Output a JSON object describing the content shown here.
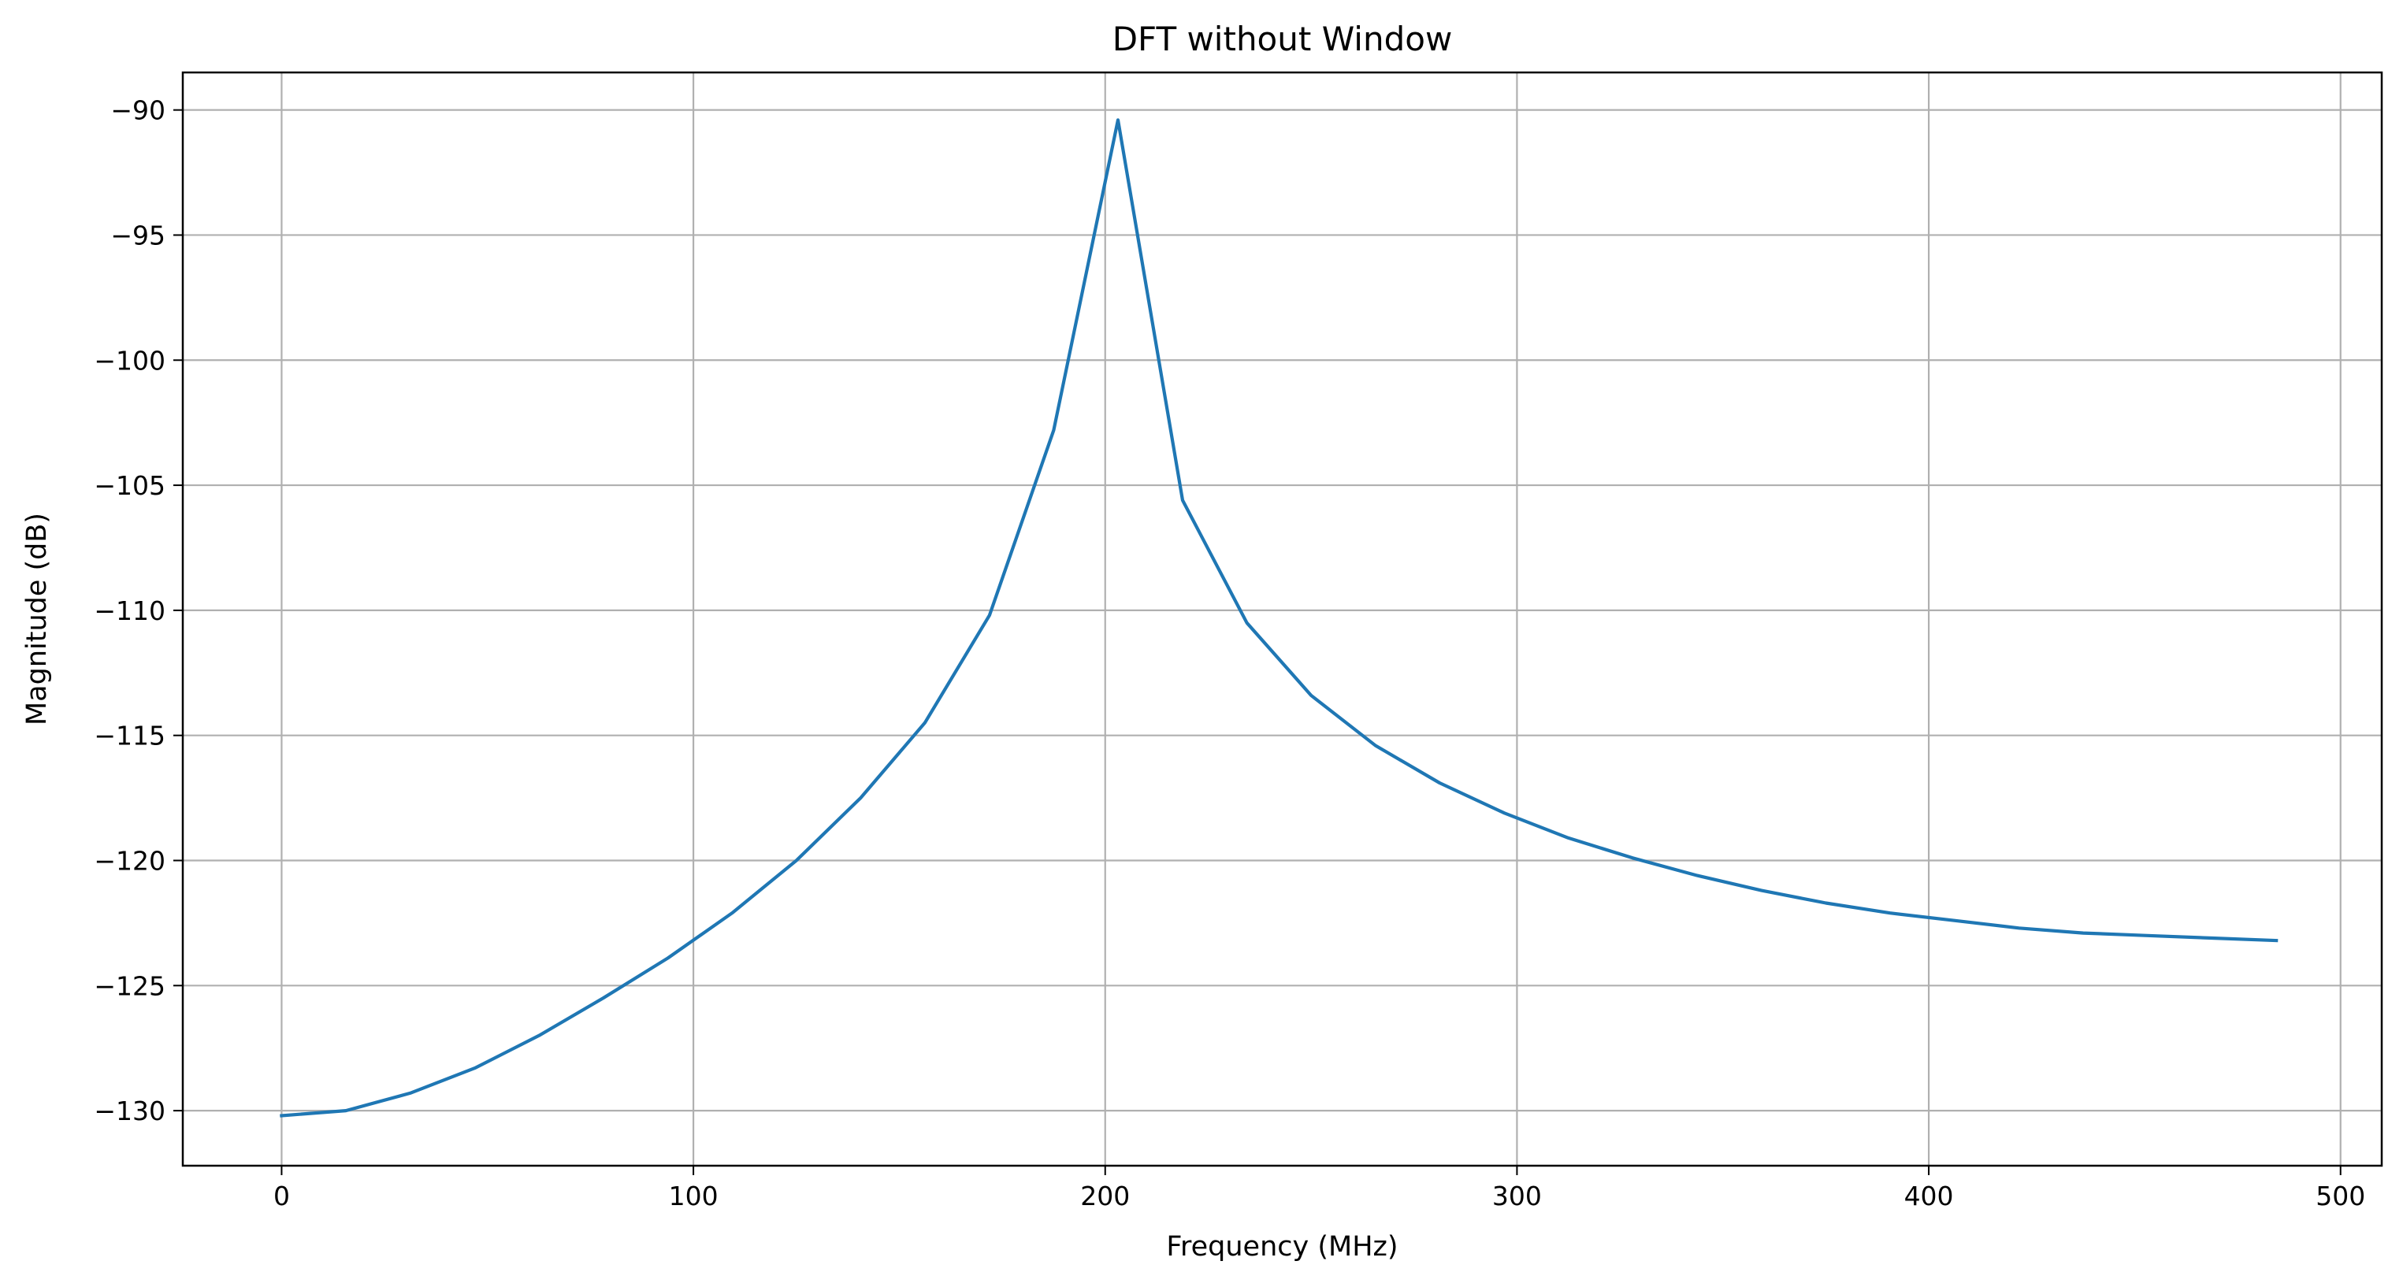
{
  "chart_data": {
    "type": "line",
    "title": "DFT without Window",
    "xlabel": "Frequency (MHz)",
    "ylabel": "Magnitude (dB)",
    "xlim": [
      -24,
      510
    ],
    "ylim": [
      -132.2,
      -88.5
    ],
    "grid": true,
    "xticks": [
      0,
      100,
      200,
      300,
      400,
      500
    ],
    "xtick_labels": [
      "0",
      "100",
      "200",
      "300",
      "400",
      "500"
    ],
    "yticks": [
      -90,
      -95,
      -100,
      -105,
      -110,
      -115,
      -120,
      -125,
      -130
    ],
    "ytick_labels": [
      "−90",
      "−95",
      "−100",
      "−105",
      "−110",
      "−115",
      "−120",
      "−125",
      "−130"
    ],
    "line_color": "#1f77b4",
    "series": [
      {
        "x": [
          0,
          15.6,
          31.2,
          46.9,
          62.5,
          78.1,
          93.8,
          109.4,
          125.0,
          140.6,
          156.2,
          171.9,
          187.5,
          203.1,
          218.8,
          234.4,
          250.0,
          265.6,
          281.2,
          296.9,
          312.5,
          328.1,
          343.8,
          359.4,
          375.0,
          390.6,
          406.2,
          421.9,
          437.5,
          453.1,
          468.8,
          484.4
        ],
        "y": [
          -130.2,
          -130.0,
          -129.3,
          -128.3,
          -127.0,
          -125.5,
          -123.9,
          -122.1,
          -120.0,
          -117.5,
          -114.5,
          -110.2,
          -102.8,
          -90.4,
          -105.6,
          -110.5,
          -113.4,
          -115.4,
          -116.9,
          -118.1,
          -119.1,
          -119.9,
          -120.6,
          -121.2,
          -121.7,
          -122.1,
          -122.4,
          -122.7,
          -122.9,
          -123.0,
          -123.1,
          -123.2
        ]
      }
    ]
  }
}
